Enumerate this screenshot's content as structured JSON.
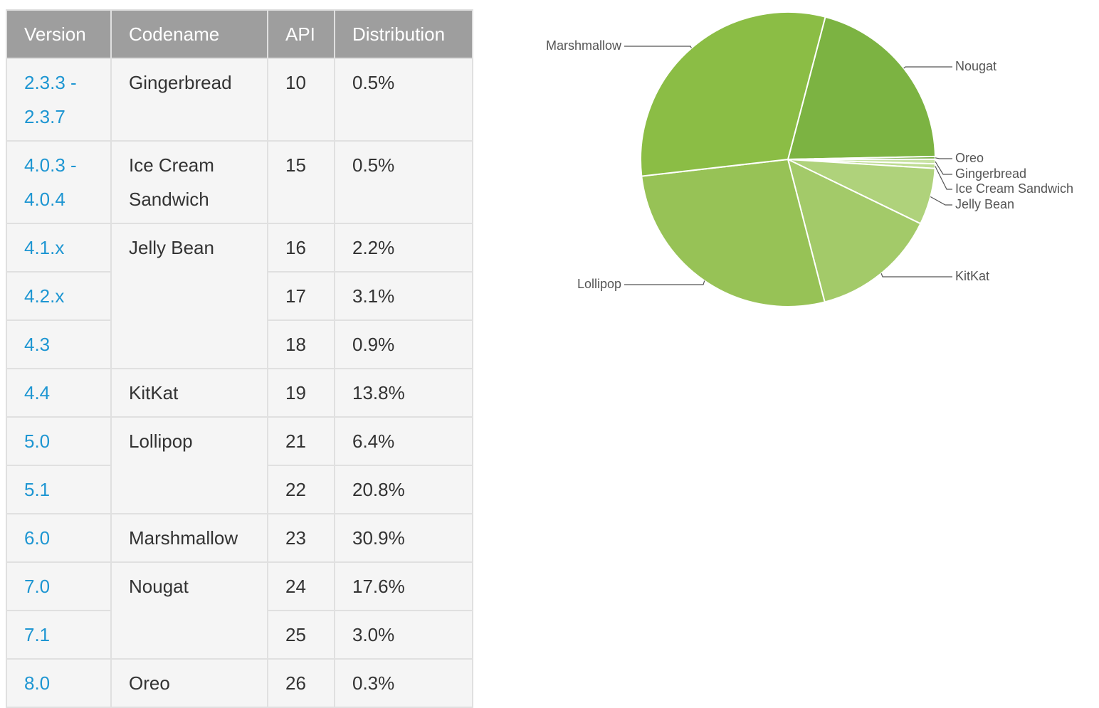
{
  "table": {
    "header": [
      "Version",
      "Codename",
      "API",
      "Distribution"
    ],
    "groups": [
      {
        "codename": "Gingerbread",
        "releases": [
          {
            "version": "2.3.3 - 2.3.7",
            "api": 10,
            "distribution": "0.5%"
          }
        ]
      },
      {
        "codename": "Ice Cream Sandwich",
        "releases": [
          {
            "version": "4.0.3 - 4.0.4",
            "api": 15,
            "distribution": "0.5%"
          }
        ]
      },
      {
        "codename": "Jelly Bean",
        "releases": [
          {
            "version": "4.1.x",
            "api": 16,
            "distribution": "2.2%"
          },
          {
            "version": "4.2.x",
            "api": 17,
            "distribution": "3.1%"
          },
          {
            "version": "4.3",
            "api": 18,
            "distribution": "0.9%"
          }
        ]
      },
      {
        "codename": "KitKat",
        "releases": [
          {
            "version": "4.4",
            "api": 19,
            "distribution": "13.8%"
          }
        ]
      },
      {
        "codename": "Lollipop",
        "releases": [
          {
            "version": "5.0",
            "api": 21,
            "distribution": "6.4%"
          },
          {
            "version": "5.1",
            "api": 22,
            "distribution": "20.8%"
          }
        ]
      },
      {
        "codename": "Marshmallow",
        "releases": [
          {
            "version": "6.0",
            "api": 23,
            "distribution": "30.9%"
          }
        ]
      },
      {
        "codename": "Nougat",
        "releases": [
          {
            "version": "7.0",
            "api": 24,
            "distribution": "17.6%"
          },
          {
            "version": "7.1",
            "api": 25,
            "distribution": "3.0%"
          }
        ]
      },
      {
        "codename": "Oreo",
        "releases": [
          {
            "version": "8.0",
            "api": 26,
            "distribution": "0.3%"
          }
        ]
      }
    ]
  },
  "chart_data": {
    "type": "pie",
    "categories": [
      "Nougat",
      "Oreo",
      "Gingerbread",
      "Ice Cream Sandwich",
      "Jelly Bean",
      "KitKat",
      "Lollipop",
      "Marshmallow"
    ],
    "values": [
      20.6,
      0.3,
      0.5,
      0.5,
      6.2,
      13.8,
      27.2,
      30.9
    ],
    "colors": [
      "#7cb342",
      "#6fa83a",
      "#c9e3a5",
      "#bedc92",
      "#afd27b",
      "#a3ca69",
      "#97c256",
      "#8bbd45"
    ]
  }
}
